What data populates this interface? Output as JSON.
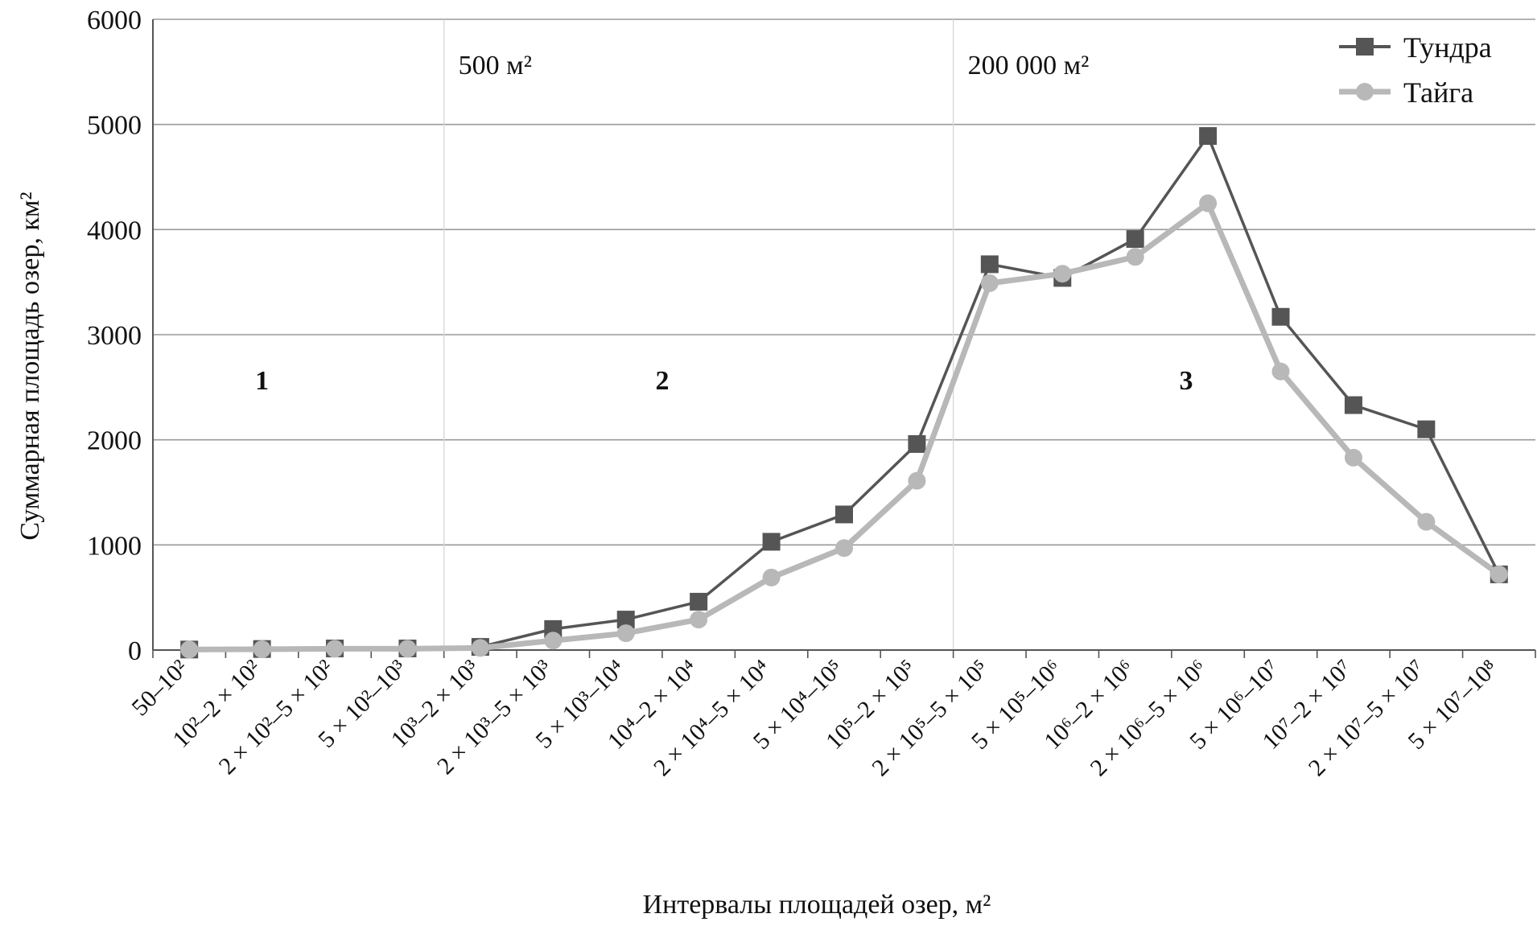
{
  "chart_data": {
    "type": "line",
    "xlabel": "Интервалы площадей озер, м²",
    "ylabel": "Суммарная площадь озер, км²",
    "ylim": [
      0,
      6000
    ],
    "yticks": [
      "0",
      "1000",
      "2000",
      "3000",
      "4000",
      "5000",
      "6000"
    ],
    "grid": "horizontal",
    "legend_position": "top-right",
    "categories": [
      "50–10²",
      "10²–2 × 10²",
      "2 × 10²–5 × 10²",
      "5 × 10²–10³",
      "10³–2 × 10³",
      "2 × 10³–5 × 10³",
      "5 × 10³–10⁴",
      "10⁴–2 × 10⁴",
      "2 × 10⁴–5 × 10⁴",
      "5 × 10⁴–10⁵",
      "10⁵–2 × 10⁵",
      "2 × 10⁵–5 × 10⁵",
      "5 × 10⁵–10⁶",
      "10⁶–2 × 10⁶",
      "2 × 10⁶–5 × 10⁶",
      "5 × 10⁶–10⁷",
      "10⁷–2 × 10⁷",
      "2 × 10⁷–5 × 10⁷",
      "5 × 10⁷–10⁸"
    ],
    "series": [
      {
        "name": "Тундра",
        "color": "#555555",
        "marker": "square",
        "values": [
          5,
          10,
          15,
          15,
          30,
          200,
          290,
          460,
          1030,
          1290,
          1960,
          3670,
          3540,
          3910,
          4890,
          3170,
          2330,
          2100,
          720
        ]
      },
      {
        "name": "Тайга",
        "color": "#b8b8b8",
        "marker": "circle",
        "values": [
          5,
          8,
          12,
          12,
          20,
          90,
          160,
          290,
          690,
          970,
          1610,
          3490,
          3580,
          3740,
          4250,
          2650,
          1830,
          1220,
          720
        ]
      }
    ],
    "annotations": {
      "thresholds": [
        {
          "label": "500 м²",
          "after_category": 3
        },
        {
          "label": "200 000 м²",
          "after_category": 10
        }
      ],
      "zones": [
        {
          "label": "1",
          "center_category": 1
        },
        {
          "label": "2",
          "center_category": 6.5
        },
        {
          "label": "3",
          "center_category": 13.7
        }
      ]
    }
  }
}
